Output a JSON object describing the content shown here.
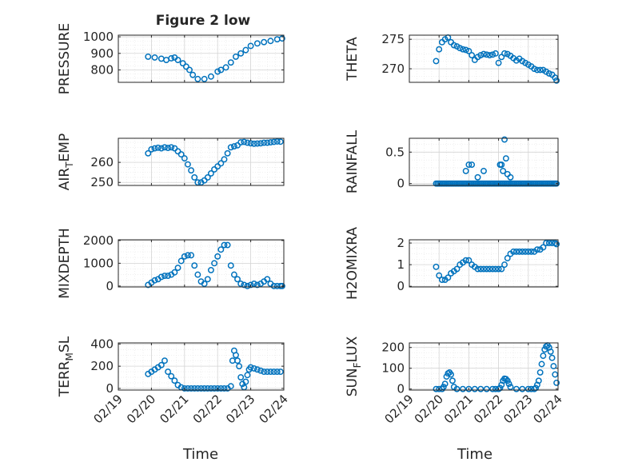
{
  "figure": {
    "title": "Figure 2 low",
    "accent_color": "#0072BD",
    "time_label": "Time",
    "time_ticks": [
      "02/19",
      "02/20",
      "02/21",
      "02/22",
      "02/23",
      "02/24"
    ]
  },
  "chart_data": [
    {
      "id": "pressure",
      "type": "scatter",
      "ylabel": "PRESSURE",
      "xlim": [
        0,
        5
      ],
      "ylim": [
        725,
        1010
      ],
      "yticks": [
        800,
        900,
        1000
      ],
      "grid": true,
      "x": [
        0.9,
        1.1,
        1.3,
        1.45,
        1.6,
        1.7,
        1.8,
        1.95,
        2.05,
        2.15,
        2.25,
        2.4,
        2.6,
        2.8,
        3.0,
        3.1,
        3.25,
        3.4,
        3.55,
        3.7,
        3.85,
        4.0,
        4.2,
        4.4,
        4.6,
        4.8,
        4.95
      ],
      "y": [
        880,
        875,
        868,
        860,
        870,
        875,
        860,
        840,
        820,
        800,
        770,
        745,
        745,
        760,
        790,
        800,
        815,
        845,
        880,
        900,
        920,
        945,
        960,
        968,
        975,
        985,
        990
      ]
    },
    {
      "id": "theta",
      "type": "scatter",
      "ylabel": "THETA",
      "xlim": [
        0,
        5
      ],
      "ylim": [
        267.7,
        275.7
      ],
      "yticks": [
        270,
        275
      ],
      "grid": true,
      "x": [
        0.9,
        1.0,
        1.1,
        1.2,
        1.3,
        1.4,
        1.5,
        1.6,
        1.7,
        1.8,
        1.9,
        2.0,
        2.1,
        2.2,
        2.3,
        2.4,
        2.5,
        2.6,
        2.7,
        2.8,
        2.9,
        3.0,
        3.1,
        3.2,
        3.3,
        3.4,
        3.5,
        3.6,
        3.7,
        3.8,
        3.9,
        4.0,
        4.1,
        4.2,
        4.3,
        4.4,
        4.5,
        4.6,
        4.7,
        4.8,
        4.9,
        4.95
      ],
      "y": [
        271.3,
        273.3,
        274.5,
        275.0,
        275.3,
        274.5,
        274.0,
        273.8,
        273.5,
        273.3,
        273.2,
        273.0,
        272.3,
        271.5,
        272.0,
        272.3,
        272.5,
        272.4,
        272.3,
        272.4,
        272.6,
        271.0,
        272.0,
        272.6,
        272.5,
        272.2,
        271.8,
        271.4,
        271.7,
        271.3,
        271.0,
        270.7,
        270.4,
        270.0,
        269.8,
        269.8,
        269.8,
        269.5,
        269.2,
        269.0,
        268.5,
        268.0
      ]
    },
    {
      "id": "air_temp",
      "type": "scatter",
      "ylabel": "AIR_TEMP",
      "ylabel_main": "AIR",
      "ylabel_sub": "T",
      "ylabel_rest": "EMP",
      "xlim": [
        0,
        5
      ],
      "ylim": [
        248.5,
        272
      ],
      "yticks": [
        250,
        260
      ],
      "grid": true,
      "x": [
        0.9,
        1.0,
        1.1,
        1.2,
        1.3,
        1.4,
        1.5,
        1.6,
        1.7,
        1.8,
        1.9,
        2.0,
        2.1,
        2.2,
        2.3,
        2.4,
        2.5,
        2.6,
        2.7,
        2.8,
        2.9,
        3.0,
        3.1,
        3.2,
        3.3,
        3.4,
        3.5,
        3.6,
        3.7,
        3.8,
        3.9,
        4.0,
        4.1,
        4.2,
        4.3,
        4.4,
        4.5,
        4.6,
        4.7,
        4.8,
        4.9
      ],
      "y": [
        264.5,
        266.5,
        267.0,
        267.3,
        267.0,
        267.5,
        267.2,
        267.5,
        267.0,
        265.5,
        264.0,
        262.0,
        259.0,
        256.0,
        252.5,
        250.0,
        250.0,
        251.0,
        252.5,
        254.5,
        256.5,
        258.0,
        259.5,
        261.5,
        264.5,
        267.5,
        268.0,
        268.5,
        270.0,
        270.2,
        269.8,
        269.5,
        269.3,
        269.4,
        269.5,
        269.8,
        269.8,
        270.0,
        270.2,
        270.4,
        270.3
      ]
    },
    {
      "id": "rainfall",
      "type": "scatter",
      "ylabel": "RAINFALL",
      "xlim": [
        0,
        5
      ],
      "ylim": [
        -0.03,
        0.72
      ],
      "yticks": [
        0,
        0.5
      ],
      "grid": true,
      "baseline_range": [
        0.9,
        4.95
      ],
      "baseline_value": 0,
      "x": [
        1.9,
        2.0,
        2.1,
        2.3,
        2.5,
        3.05,
        3.1,
        3.15,
        3.2,
        3.25,
        3.3,
        3.4
      ],
      "y": [
        0.2,
        0.3,
        0.3,
        0.1,
        0.2,
        0.3,
        0.3,
        0.2,
        0.7,
        0.4,
        0.15,
        0.1
      ]
    },
    {
      "id": "mixdepth",
      "type": "scatter",
      "ylabel": "MIXDEPTH",
      "xlim": [
        0,
        5
      ],
      "ylim": [
        -40,
        2030
      ],
      "yticks": [
        0,
        1000,
        2000
      ],
      "grid": true,
      "x": [
        0.9,
        1.0,
        1.1,
        1.2,
        1.3,
        1.4,
        1.5,
        1.6,
        1.7,
        1.8,
        1.9,
        2.0,
        2.1,
        2.2,
        2.3,
        2.4,
        2.5,
        2.6,
        2.7,
        2.8,
        2.9,
        3.0,
        3.1,
        3.2,
        3.3,
        3.4,
        3.5,
        3.6,
        3.7,
        3.8,
        3.9,
        4.0,
        4.1,
        4.2,
        4.3,
        4.4,
        4.5,
        4.6,
        4.7,
        4.8,
        4.9,
        4.95
      ],
      "y": [
        50,
        150,
        250,
        300,
        400,
        450,
        450,
        500,
        600,
        800,
        1100,
        1300,
        1350,
        1350,
        900,
        500,
        200,
        100,
        300,
        700,
        1000,
        1300,
        1600,
        1800,
        1800,
        900,
        500,
        300,
        100,
        50,
        0,
        50,
        100,
        50,
        100,
        200,
        300,
        100,
        0,
        0,
        0,
        0
      ]
    },
    {
      "id": "h2omixra",
      "type": "scatter",
      "ylabel": "H2OMIXRA",
      "xlim": [
        0,
        5
      ],
      "ylim": [
        -0.03,
        2.15
      ],
      "yticks": [
        0,
        1,
        2
      ],
      "grid": true,
      "x": [
        0.9,
        1.0,
        1.1,
        1.2,
        1.3,
        1.4,
        1.5,
        1.6,
        1.7,
        1.8,
        1.9,
        2.0,
        2.1,
        2.2,
        2.3,
        2.4,
        2.5,
        2.6,
        2.7,
        2.8,
        2.9,
        3.0,
        3.1,
        3.2,
        3.3,
        3.4,
        3.5,
        3.6,
        3.7,
        3.8,
        3.9,
        4.0,
        4.1,
        4.2,
        4.3,
        4.4,
        4.5,
        4.6,
        4.7,
        4.8,
        4.9,
        4.95
      ],
      "y": [
        0.9,
        0.5,
        0.3,
        0.3,
        0.4,
        0.6,
        0.7,
        0.8,
        1.0,
        1.1,
        1.2,
        1.2,
        1.0,
        0.9,
        0.8,
        0.8,
        0.8,
        0.8,
        0.8,
        0.8,
        0.8,
        0.8,
        0.8,
        1.0,
        1.3,
        1.5,
        1.6,
        1.6,
        1.6,
        1.6,
        1.6,
        1.6,
        1.6,
        1.6,
        1.7,
        1.7,
        1.8,
        2.0,
        2.0,
        2.0,
        2.0,
        1.95
      ]
    },
    {
      "id": "terr_msl",
      "type": "scatter",
      "ylabel": "TERR_MSL",
      "ylabel_main": "TERR",
      "ylabel_sub": "M",
      "ylabel_rest": "SL",
      "xlim": [
        0,
        5
      ],
      "ylim": [
        -15,
        410
      ],
      "yticks": [
        0,
        200,
        400
      ],
      "grid": true,
      "x": [
        0.9,
        1.0,
        1.1,
        1.2,
        1.3,
        1.4,
        1.5,
        1.6,
        1.7,
        1.8,
        1.9,
        2.0,
        2.1,
        2.2,
        2.3,
        2.4,
        2.5,
        2.6,
        2.7,
        2.8,
        2.9,
        3.0,
        3.1,
        3.2,
        3.3,
        3.4,
        3.45,
        3.5,
        3.55,
        3.6,
        3.65,
        3.7,
        3.75,
        3.8,
        3.85,
        3.9,
        3.95,
        4.0,
        4.1,
        4.2,
        4.3,
        4.4,
        4.5,
        4.6,
        4.7,
        4.8,
        4.9
      ],
      "y": [
        130,
        150,
        170,
        190,
        210,
        250,
        150,
        110,
        70,
        30,
        10,
        0,
        0,
        0,
        0,
        0,
        0,
        0,
        0,
        0,
        0,
        0,
        0,
        0,
        0,
        20,
        250,
        340,
        300,
        250,
        200,
        100,
        40,
        10,
        60,
        120,
        170,
        190,
        180,
        170,
        160,
        150,
        150,
        150,
        150,
        150,
        150
      ]
    },
    {
      "id": "sun_flux",
      "type": "scatter",
      "ylabel": "SUN_FLUX",
      "ylabel_main": "SUN",
      "ylabel_sub": "F",
      "ylabel_rest": "LUX",
      "xlim": [
        0,
        5
      ],
      "ylim": [
        -5,
        222
      ],
      "yticks": [
        0,
        100,
        200
      ],
      "grid": true,
      "x": [
        0.9,
        1.0,
        1.1,
        1.15,
        1.2,
        1.25,
        1.3,
        1.35,
        1.4,
        1.45,
        1.5,
        1.6,
        1.8,
        2.0,
        2.2,
        2.4,
        2.6,
        2.8,
        2.9,
        3.0,
        3.05,
        3.1,
        3.15,
        3.2,
        3.25,
        3.3,
        3.35,
        3.4,
        3.6,
        3.8,
        4.0,
        4.1,
        4.2,
        4.25,
        4.3,
        4.35,
        4.4,
        4.45,
        4.5,
        4.55,
        4.6,
        4.65,
        4.7,
        4.75,
        4.8,
        4.85,
        4.9,
        4.95
      ],
      "y": [
        0,
        0,
        0,
        10,
        25,
        60,
        75,
        80,
        70,
        40,
        10,
        0,
        0,
        0,
        0,
        0,
        0,
        0,
        0,
        0,
        5,
        20,
        40,
        50,
        48,
        40,
        25,
        10,
        0,
        0,
        0,
        0,
        0,
        5,
        20,
        40,
        80,
        120,
        160,
        190,
        205,
        210,
        200,
        180,
        150,
        110,
        70,
        30
      ]
    }
  ]
}
